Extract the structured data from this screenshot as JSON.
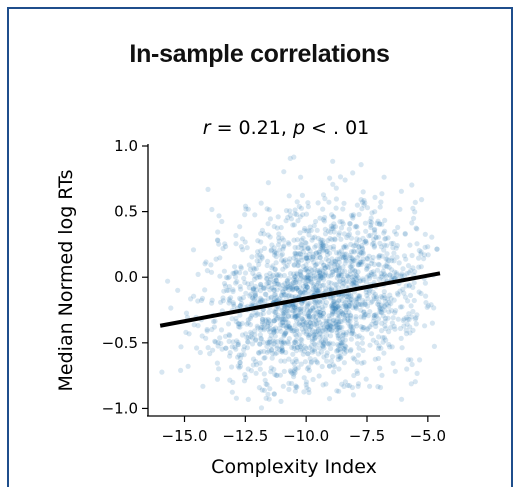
{
  "figure": {
    "heading": "In-sample correlations",
    "subtitle": "r = 0.21, p < . 01"
  },
  "chart_data": {
    "type": "scatter",
    "title": "r = 0.21, p < . 01",
    "xlabel": "Complexity Index",
    "ylabel": "Median Normed log RTs",
    "xlim": [
      -16.5,
      -4.5
    ],
    "ylim": [
      -1.05,
      1.0
    ],
    "x_ticks": [
      -15.0,
      -12.5,
      -10.0,
      -7.5,
      -5.0
    ],
    "x_tick_labels": [
      "−15.0",
      "−12.5",
      "−10.0",
      "−7.5",
      "−5.0"
    ],
    "y_ticks": [
      1.0,
      0.5,
      0.0,
      -0.5,
      -1.0
    ],
    "y_tick_labels": [
      "1.0",
      "0.5",
      "0.0",
      "−0.5",
      "−1.0"
    ],
    "grid": false,
    "point_color": "#1f77b4",
    "point_opacity": 0.18,
    "fit_line": {
      "x": [
        -16.0,
        -4.5
      ],
      "y": [
        -0.37,
        0.03
      ],
      "color": "#000000"
    },
    "correlation": {
      "r": 0.21,
      "p": "< .01"
    },
    "points": {
      "description_note": "dense cloud of ~2000 points centered near x=-9.5, y=-0.15",
      "n": 2000,
      "center": [
        -9.5,
        -0.15
      ],
      "spread": [
        2.2,
        0.33
      ],
      "seed": 7
    }
  }
}
